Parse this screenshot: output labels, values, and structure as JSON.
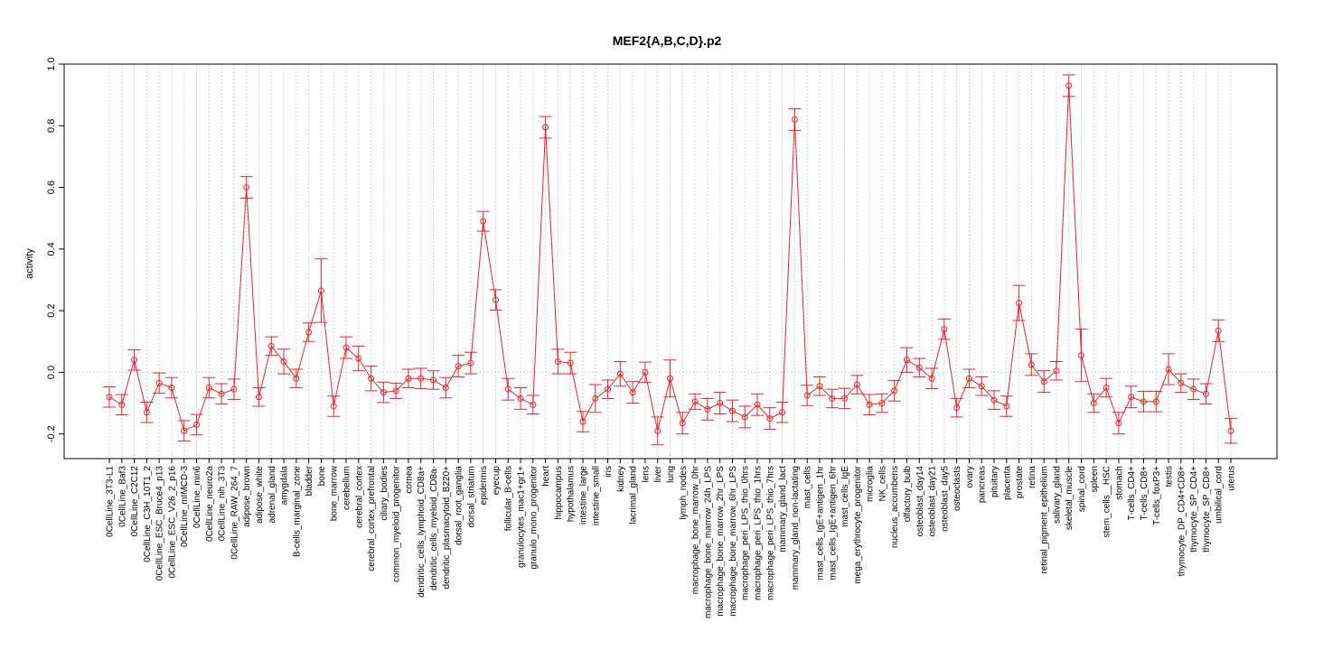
{
  "chart_data": {
    "type": "line",
    "title": "MEF2{A,B,C,D}.p2",
    "xlabel": "",
    "ylabel": "activity",
    "ylim": [
      -0.28,
      1.0
    ],
    "yticks": [
      "-0.2",
      "0.0",
      "0.2",
      "0.4",
      "0.6",
      "0.8",
      "1.0"
    ],
    "ytick_values": [
      -0.2,
      0.0,
      0.2,
      0.4,
      0.6,
      0.8,
      1.0
    ],
    "grid": true,
    "reference_line": 0.0,
    "color": "#e8242a",
    "categories": [
      "0CellLine_3T3-L1",
      "0CellLine_Baf3",
      "0CellLine_C2C12",
      "0CellLine_C3H_10T1_2",
      "0CellLine_ESC_Bruce4_p13",
      "0CellLine_ESC_V26_2_p16",
      "0CellLine_mIMCD-3",
      "0CellLine_min6",
      "0CellLine_neuro2a",
      "0CellLine_nih_3T3",
      "0CellLine_RAW_264_7",
      "adipose_brown",
      "adipose_white",
      "adrenal_gland",
      "amygdala",
      "B-cells_marginal_zone",
      "bladder",
      "bone",
      "bone_marrow",
      "cerebellum",
      "cerebral_cortex",
      "cerebral_cortex_prefrontal",
      "ciliary_bodies",
      "common_myeloid_progenitor",
      "cornea",
      "dendritic_cells_lymphoid_CD8a+",
      "dendritic_cells_myeloid_CD8a-",
      "dendritic_plasmacytoid_B220+",
      "dorsal_root_ganglia",
      "dorsal_striatum",
      "epidermis",
      "eyecup",
      "follicular_B-cells",
      "granulocytes_mac1+gr1+",
      "granulo_mono_progenitor",
      "heart",
      "hippocampus",
      "hypothalamus",
      "intestine_large",
      "intestine_small",
      "iris",
      "kidney",
      "lacrimal_gland",
      "lens",
      "liver",
      "lung",
      "lymph_nodes",
      "macrophage_bone_marrow_0hr",
      "macrophage_bone_marrow_24h_LPS",
      "macrophage_bone_marrow_2hr_LPS",
      "macrophage_bone_marrow_6hr_LPS",
      "macrophage_peri_LPS_thio_0hrs",
      "macrophage_peri_LPS_thio_1hrs",
      "macrophage_peri_LPS_thio_7hrs",
      "mammary_gland_lact",
      "mammary_gland_non-lactating",
      "mast_cells",
      "mast_cells_IgE+antigen_1hr",
      "mast_cells_IgE+antigen_6hr",
      "mast_cells_IgE",
      "mega_erythrocyte_progenitor",
      "microglia",
      "NK_cells",
      "nucleus_accumbens",
      "olfactory_bulb",
      "osteoblast_day14",
      "osteoblast_day21",
      "osteoblast_day5",
      "osteoclasts",
      "ovary",
      "pancreas",
      "pituitary",
      "placenta",
      "prostate",
      "retina",
      "retinal_pigment_epithelium",
      "salivary_gland",
      "skeletal_muscle",
      "spinal_cord",
      "spleen",
      "stem_cells__HSC",
      "stomach",
      "T-cells_CD4+",
      "T-cells_CD8+",
      "T-cells_foxP3+",
      "testis",
      "thymocyte_DP_CD4+CD8+",
      "thymocyte_SP_CD4+",
      "thymocyte_SP_CD8+",
      "umbilical_cord",
      "uterus"
    ],
    "values": [
      -0.08,
      -0.105,
      0.04,
      -0.13,
      -0.035,
      -0.05,
      -0.19,
      -0.17,
      -0.05,
      -0.07,
      -0.055,
      0.6,
      -0.08,
      0.085,
      0.035,
      -0.02,
      0.13,
      0.265,
      -0.11,
      0.08,
      0.045,
      -0.02,
      -0.065,
      -0.06,
      -0.02,
      -0.02,
      -0.025,
      -0.05,
      0.02,
      0.03,
      0.49,
      0.235,
      -0.055,
      -0.085,
      -0.105,
      0.795,
      0.035,
      0.03,
      -0.16,
      -0.085,
      -0.055,
      -0.005,
      -0.065,
      0.0,
      -0.19,
      -0.02,
      -0.165,
      -0.095,
      -0.12,
      -0.1,
      -0.125,
      -0.145,
      -0.105,
      -0.15,
      -0.13,
      0.82,
      -0.075,
      -0.045,
      -0.085,
      -0.085,
      -0.04,
      -0.105,
      -0.1,
      -0.06,
      0.04,
      0.015,
      -0.02,
      0.14,
      -0.115,
      -0.02,
      -0.045,
      -0.09,
      -0.11,
      0.225,
      0.025,
      -0.03,
      0.005,
      0.93,
      0.055,
      -0.1,
      -0.05,
      -0.165,
      -0.08,
      -0.095,
      -0.095,
      0.01,
      -0.035,
      -0.055,
      -0.07,
      0.135,
      -0.19
    ],
    "errors": [
      0.033,
      0.033,
      0.033,
      0.033,
      0.033,
      0.033,
      0.033,
      0.033,
      0.033,
      0.033,
      0.033,
      0.035,
      0.03,
      0.03,
      0.04,
      0.03,
      0.03,
      0.103,
      0.033,
      0.035,
      0.04,
      0.04,
      0.033,
      0.025,
      0.03,
      0.033,
      0.03,
      0.033,
      0.035,
      0.035,
      0.032,
      0.033,
      0.035,
      0.035,
      0.03,
      0.035,
      0.04,
      0.035,
      0.033,
      0.045,
      0.03,
      0.04,
      0.035,
      0.033,
      0.045,
      0.06,
      0.035,
      0.025,
      0.035,
      0.035,
      0.035,
      0.035,
      0.035,
      0.035,
      0.033,
      0.035,
      0.033,
      0.03,
      0.03,
      0.033,
      0.03,
      0.033,
      0.03,
      0.033,
      0.04,
      0.03,
      0.033,
      0.033,
      0.03,
      0.03,
      0.03,
      0.03,
      0.033,
      0.057,
      0.035,
      0.035,
      0.03,
      0.035,
      0.085,
      0.03,
      0.03,
      0.035,
      0.035,
      0.033,
      0.033,
      0.05,
      0.03,
      0.033,
      0.033,
      0.035,
      0.04
    ]
  }
}
